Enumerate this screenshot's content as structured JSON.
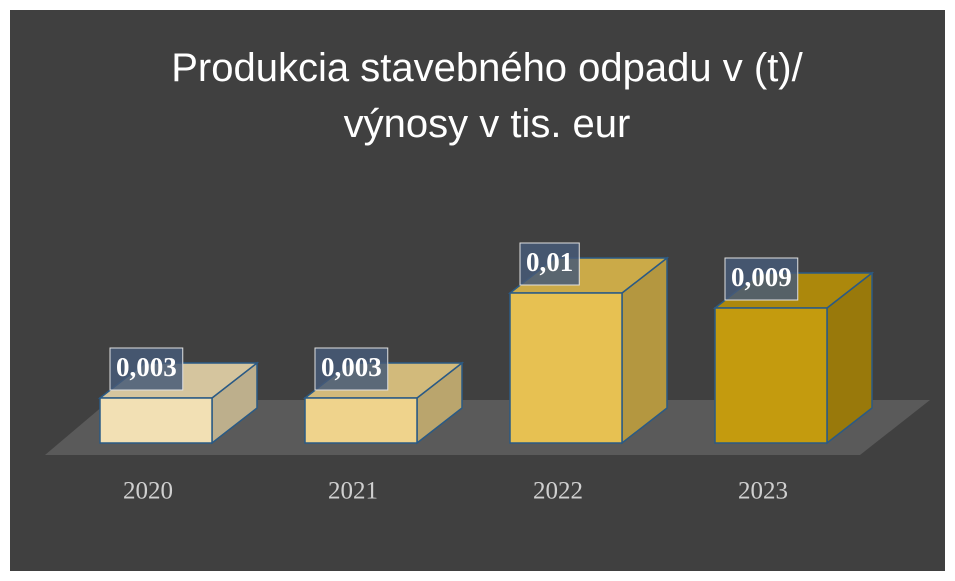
{
  "chart_data": {
    "type": "bar3d",
    "title": "Produkcia stavebného odpadu v (t)/ výnosy v tis. eur",
    "categories": [
      "2020",
      "2021",
      "2022",
      "2023"
    ],
    "values": [
      0.003,
      0.003,
      0.01,
      0.009
    ],
    "value_labels": [
      "0,003",
      "0,003",
      "0,01",
      "0,009"
    ],
    "colors": [
      "#f2e0b4",
      "#efd38c",
      "#e7c152",
      "#c49b0e"
    ]
  }
}
